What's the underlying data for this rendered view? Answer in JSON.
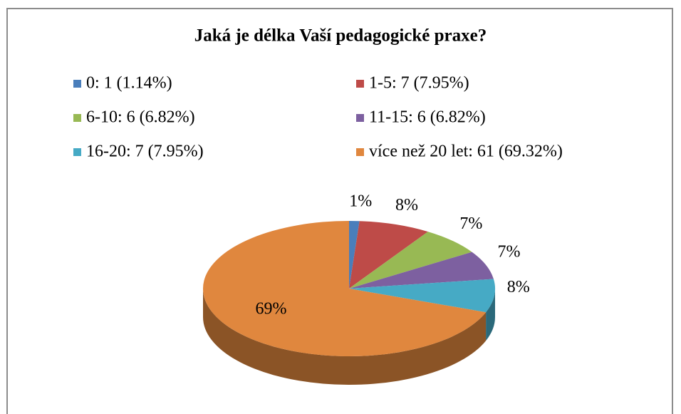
{
  "chart_data": {
    "type": "pie3d",
    "title": "Jaká je délka Vaší pedagogické praxe?",
    "categories": [
      "0: 1 (1.14%)",
      "1-5: 7 (7.95%)",
      "6-10: 6 (6.82%)",
      "11-15: 6 (6.82%)",
      "16-20: 7 (7.95%)",
      "více než 20 let: 61 (69.32%)"
    ],
    "values": [
      1.14,
      7.95,
      6.82,
      6.82,
      7.95,
      69.32
    ],
    "value_labels": [
      "1%",
      "8%",
      "7%",
      "7%",
      "8%",
      "69%"
    ],
    "colors": [
      "#4a7ebb",
      "#be4b48",
      "#98b954",
      "#7d60a0",
      "#46aac5",
      "#e0873e"
    ],
    "legend": "top"
  }
}
